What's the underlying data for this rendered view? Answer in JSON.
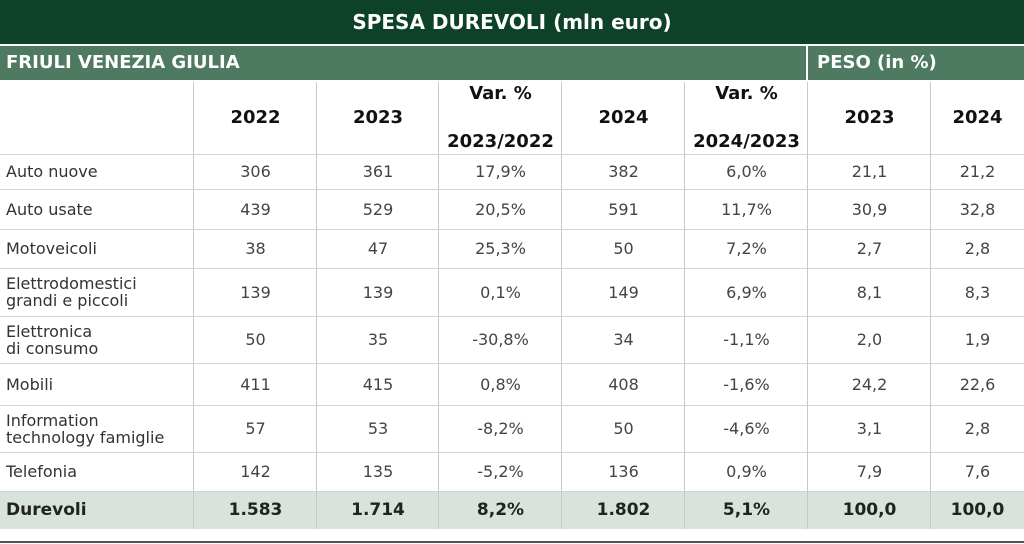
{
  "chart_data": {
    "type": "table",
    "title": "SPESA DUREVOLI (mln euro)",
    "region": "FRIULI VENEZIA GIULIA",
    "group_header": "PESO (in %)",
    "columns": [
      "2022",
      "2023",
      "Var. %\n2023/2022",
      "2024",
      "Var. %\n2024/2023",
      "2023",
      "2024"
    ],
    "rows": [
      {
        "label": "Auto nuove",
        "values": [
          "306",
          "361",
          "17,9%",
          "382",
          "6,0%",
          "21,1",
          "21,2"
        ]
      },
      {
        "label": "Auto usate",
        "values": [
          "439",
          "529",
          "20,5%",
          "591",
          "11,7%",
          "30,9",
          "32,8"
        ]
      },
      {
        "label": "Motoveicoli",
        "values": [
          "38",
          "47",
          "25,3%",
          "50",
          "7,2%",
          "2,7",
          "2,8"
        ]
      },
      {
        "label": "Elettrodomestici\ngrandi e piccoli",
        "values": [
          "139",
          "139",
          "0,1%",
          "149",
          "6,9%",
          "8,1",
          "8,3"
        ]
      },
      {
        "label": "Elettronica\ndi consumo",
        "values": [
          "50",
          "35",
          "-30,8%",
          "34",
          "-1,1%",
          "2,0",
          "1,9"
        ]
      },
      {
        "label": "Mobili",
        "values": [
          "411",
          "415",
          "0,8%",
          "408",
          "-1,6%",
          "24,2",
          "22,6"
        ]
      },
      {
        "label": "Information\ntechnology famiglie",
        "values": [
          "57",
          "53",
          "-8,2%",
          "50",
          "-4,6%",
          "3,1",
          "2,8"
        ]
      },
      {
        "label": "Telefonia",
        "values": [
          "142",
          "135",
          "-5,2%",
          "136",
          "0,9%",
          "7,9",
          "7,6"
        ]
      }
    ],
    "total": {
      "label": "Durevoli",
      "values": [
        "1.583",
        "1.714",
        "8,2%",
        "1.802",
        "5,1%",
        "100,0",
        "100,0"
      ]
    }
  },
  "colors": {
    "title_bg": "#0d4128",
    "header_bg": "#4d7a61",
    "total_bg": "#d9e3dc"
  }
}
